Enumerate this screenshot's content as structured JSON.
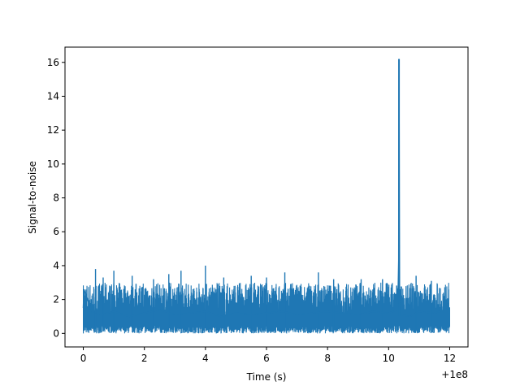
{
  "chart_data": {
    "type": "line",
    "title": "",
    "xlabel": "Time (s)",
    "ylabel": "Signal-to-noise",
    "x_offset_label": "+1e8",
    "xlim": [
      -0.6,
      12.6
    ],
    "ylim": [
      -0.8,
      16.9
    ],
    "x_ticks": [
      0,
      2,
      4,
      6,
      8,
      10,
      12
    ],
    "x_tick_labels": [
      "0",
      "2",
      "4",
      "6",
      "8",
      "10",
      "12"
    ],
    "y_ticks": [
      0,
      2,
      4,
      6,
      8,
      10,
      12,
      14,
      16
    ],
    "y_tick_labels": [
      "0",
      "2",
      "4",
      "6",
      "8",
      "10",
      "12",
      "14",
      "16"
    ],
    "grid": false,
    "line_color": "#1f77b4",
    "noise_range": [
      0,
      3.0
    ],
    "series": [
      {
        "x": [
          0,
          0.02,
          0.3,
          0.6,
          1.0,
          1.5,
          2.0,
          2.5,
          3.0,
          3.5,
          4.0,
          4.5,
          5.0,
          5.5,
          6.0,
          6.5,
          7.0,
          7.5,
          8.0,
          8.5,
          9.0,
          9.5,
          10.0,
          10.3,
          10.33,
          10.34,
          10.35,
          10.36,
          10.4,
          10.7,
          11.0,
          11.5,
          12.0
        ],
        "y": [
          1.5,
          2.6,
          1.2,
          1.1,
          1.3,
          1.0,
          1.2,
          1.4,
          1.1,
          1.2,
          1.3,
          1.0,
          1.2,
          1.1,
          1.2,
          1.3,
          1.1,
          1.2,
          1.3,
          1.2,
          1.1,
          1.3,
          1.2,
          1.4,
          4.3,
          16.2,
          8.2,
          1.2,
          1.1,
          1.0,
          1.3,
          1.2,
          1.5
        ]
      }
    ],
    "peak_series": [
      {
        "x": 0.4,
        "y": 3.8
      },
      {
        "x": 0.65,
        "y": 3.3
      },
      {
        "x": 1.0,
        "y": 3.7
      },
      {
        "x": 1.6,
        "y": 3.4
      },
      {
        "x": 2.3,
        "y": 3.2
      },
      {
        "x": 2.8,
        "y": 3.5
      },
      {
        "x": 3.2,
        "y": 3.7
      },
      {
        "x": 4.0,
        "y": 4.0
      },
      {
        "x": 4.6,
        "y": 3.3
      },
      {
        "x": 5.5,
        "y": 3.4
      },
      {
        "x": 6.0,
        "y": 3.3
      },
      {
        "x": 6.6,
        "y": 3.6
      },
      {
        "x": 7.7,
        "y": 3.6
      },
      {
        "x": 8.2,
        "y": 3.2
      },
      {
        "x": 9.1,
        "y": 3.2
      },
      {
        "x": 9.8,
        "y": 3.2
      },
      {
        "x": 10.9,
        "y": 3.4
      },
      {
        "x": 11.4,
        "y": 3.1
      }
    ]
  }
}
